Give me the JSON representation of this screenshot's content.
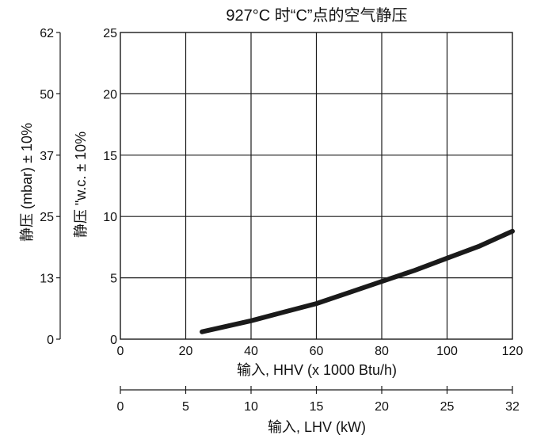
{
  "chart_data": {
    "type": "line",
    "title": "927°C 时“C”点的空气静压",
    "x_label": "输入, HHV (x 1000 Btu/h)",
    "x_ticks": [
      0,
      20,
      40,
      60,
      80,
      100,
      120
    ],
    "xlim": [
      0,
      120
    ],
    "x2_label": "输入, LHV (kW)",
    "x2_ticks": [
      "0",
      "5",
      "10",
      "15",
      "20",
      "25",
      "32"
    ],
    "x2_lim": [
      0,
      32
    ],
    "y_label": "静压 \"w.c. ± 10%",
    "y_ticks": [
      0,
      5,
      10,
      15,
      20,
      25
    ],
    "ylim": [
      0,
      25
    ],
    "y2_label": "静压 (mbar) ± 10%",
    "y2_ticks": [
      "0",
      "13",
      "25",
      "37",
      "50",
      "62"
    ],
    "y2_lim": [
      0,
      62
    ],
    "grid": true,
    "series": [
      {
        "x": [
          25,
          30,
          40,
          50,
          60,
          70,
          80,
          90,
          100,
          110,
          120
        ],
        "y": [
          0.6,
          0.9,
          1.5,
          2.2,
          2.9,
          3.8,
          4.7,
          5.6,
          6.6,
          7.6,
          8.8
        ]
      }
    ]
  }
}
